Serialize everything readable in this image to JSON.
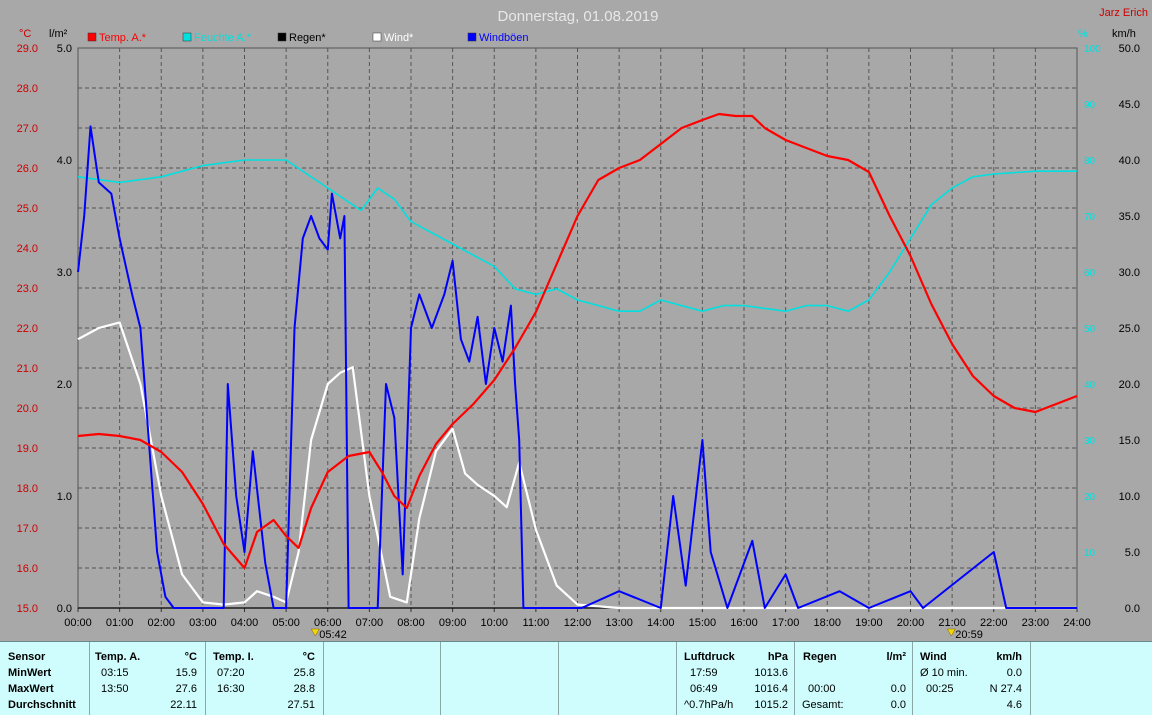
{
  "title": "Donnerstag, 01.08.2019",
  "author": "Jarz Erich",
  "units": {
    "temp": "°C",
    "rain": "l/m²",
    "hum": "%",
    "wind": "km/h"
  },
  "colors": {
    "temp": "#ff0000",
    "hum": "#00e0e0",
    "rain": "#000000",
    "wind": "#ffffff",
    "gust": "#0000ff",
    "author": "#cc0000"
  },
  "chart_data": {
    "type": "line",
    "title": "Donnerstag, 01.08.2019",
    "x_ticks": [
      "00:00",
      "01:00",
      "02:00",
      "03:00",
      "04:00",
      "05:00",
      "06:00",
      "07:00",
      "08:00",
      "09:00",
      "10:00",
      "11:00",
      "12:00",
      "13:00",
      "14:00",
      "15:00",
      "16:00",
      "17:00",
      "18:00",
      "19:00",
      "20:00",
      "21:00",
      "22:00",
      "23:00",
      "24:00"
    ],
    "temp_ticks": [
      "15.0",
      "16.0",
      "17.0",
      "18.0",
      "19.0",
      "20.0",
      "21.0",
      "22.0",
      "23.0",
      "24.0",
      "25.0",
      "26.0",
      "27.0",
      "28.0",
      "29.0"
    ],
    "rain_ticks": [
      "0.0",
      "1.0",
      "2.0",
      "3.0",
      "4.0",
      "5.0"
    ],
    "wind_ticks": [
      "0.0",
      "5.0",
      "10.0",
      "15.0",
      "20.0",
      "25.0",
      "30.0",
      "35.0",
      "40.0",
      "45.0",
      "50.0"
    ],
    "hum_ticks": [
      "10",
      "20",
      "30",
      "40",
      "50",
      "60",
      "70",
      "80",
      "90",
      "100"
    ],
    "ylim_temp": [
      15,
      29
    ],
    "ylim_rain": [
      0,
      5
    ],
    "ylim_wind": [
      0,
      50
    ],
    "ylim_hum": [
      0,
      100
    ],
    "xlim_hours": [
      0,
      24
    ],
    "sunrise": {
      "label": "05:42",
      "hour": 5.7
    },
    "sunset": {
      "label": "20:59",
      "hour": 20.98
    },
    "series": [
      {
        "name": "Temp. A.*",
        "axis": "temp",
        "points": [
          [
            0,
            19.3
          ],
          [
            0.5,
            19.35
          ],
          [
            1,
            19.3
          ],
          [
            1.5,
            19.2
          ],
          [
            2,
            18.9
          ],
          [
            2.5,
            18.4
          ],
          [
            3,
            17.6
          ],
          [
            3.5,
            16.6
          ],
          [
            4,
            16.0
          ],
          [
            4.3,
            16.9
          ],
          [
            4.7,
            17.2
          ],
          [
            5,
            16.8
          ],
          [
            5.3,
            16.5
          ],
          [
            5.6,
            17.5
          ],
          [
            6,
            18.4
          ],
          [
            6.5,
            18.8
          ],
          [
            7,
            18.9
          ],
          [
            7.3,
            18.4
          ],
          [
            7.6,
            17.8
          ],
          [
            7.9,
            17.5
          ],
          [
            8.2,
            18.3
          ],
          [
            8.6,
            19.1
          ],
          [
            9,
            19.6
          ],
          [
            9.5,
            20.1
          ],
          [
            10,
            20.7
          ],
          [
            10.5,
            21.5
          ],
          [
            11,
            22.4
          ],
          [
            11.5,
            23.6
          ],
          [
            12,
            24.8
          ],
          [
            12.5,
            25.7
          ],
          [
            13,
            26.0
          ],
          [
            13.5,
            26.2
          ],
          [
            14,
            26.6
          ],
          [
            14.5,
            27.0
          ],
          [
            15,
            27.2
          ],
          [
            15.4,
            27.35
          ],
          [
            15.8,
            27.3
          ],
          [
            16.2,
            27.3
          ],
          [
            16.5,
            27.0
          ],
          [
            17,
            26.7
          ],
          [
            17.5,
            26.5
          ],
          [
            18,
            26.3
          ],
          [
            18.5,
            26.2
          ],
          [
            19,
            25.9
          ],
          [
            19.5,
            24.8
          ],
          [
            20,
            23.8
          ],
          [
            20.5,
            22.6
          ],
          [
            21,
            21.6
          ],
          [
            21.5,
            20.8
          ],
          [
            22,
            20.3
          ],
          [
            22.5,
            20.0
          ],
          [
            23,
            19.9
          ],
          [
            23.5,
            20.1
          ],
          [
            24,
            20.3
          ]
        ]
      },
      {
        "name": "Feuchte A.*",
        "axis": "hum",
        "points": [
          [
            0,
            77
          ],
          [
            1,
            76
          ],
          [
            2,
            77
          ],
          [
            3,
            79
          ],
          [
            4,
            80
          ],
          [
            5,
            80
          ],
          [
            6,
            75
          ],
          [
            6.8,
            71
          ],
          [
            7.2,
            75
          ],
          [
            7.6,
            73
          ],
          [
            8,
            69
          ],
          [
            9,
            65
          ],
          [
            10,
            61
          ],
          [
            10.5,
            57
          ],
          [
            11,
            56
          ],
          [
            11.5,
            57
          ],
          [
            12,
            55
          ],
          [
            13,
            53
          ],
          [
            13.5,
            53
          ],
          [
            14,
            55
          ],
          [
            15,
            53
          ],
          [
            15.5,
            54
          ],
          [
            16,
            54
          ],
          [
            17,
            53
          ],
          [
            17.5,
            54
          ],
          [
            18,
            54
          ],
          [
            18.5,
            53
          ],
          [
            19,
            55
          ],
          [
            19.5,
            60
          ],
          [
            20,
            66
          ],
          [
            20.5,
            72
          ],
          [
            21,
            75
          ],
          [
            21.5,
            77
          ],
          [
            22,
            77.5
          ],
          [
            23,
            78
          ],
          [
            24,
            78
          ]
        ]
      },
      {
        "name": "Regen*",
        "axis": "rain",
        "points": [
          [
            0,
            0
          ],
          [
            24,
            0
          ]
        ]
      },
      {
        "name": "Wind*",
        "axis": "wind",
        "points": [
          [
            0,
            24
          ],
          [
            0.5,
            25
          ],
          [
            1,
            25.5
          ],
          [
            1.5,
            20
          ],
          [
            2,
            10
          ],
          [
            2.5,
            3
          ],
          [
            3,
            0.5
          ],
          [
            3.5,
            0.3
          ],
          [
            4,
            0.5
          ],
          [
            4.3,
            1.5
          ],
          [
            4.7,
            1
          ],
          [
            5,
            0.5
          ],
          [
            5.3,
            5
          ],
          [
            5.6,
            15
          ],
          [
            6,
            20
          ],
          [
            6.3,
            21
          ],
          [
            6.6,
            21.5
          ],
          [
            7,
            10
          ],
          [
            7.5,
            1
          ],
          [
            7.9,
            0.5
          ],
          [
            8.2,
            8
          ],
          [
            8.6,
            14
          ],
          [
            9,
            16
          ],
          [
            9.3,
            12
          ],
          [
            9.6,
            11
          ],
          [
            10,
            10
          ],
          [
            10.3,
            9
          ],
          [
            10.6,
            13
          ],
          [
            11,
            7
          ],
          [
            11.5,
            2
          ],
          [
            12,
            0.3
          ],
          [
            13,
            0
          ],
          [
            14,
            0
          ],
          [
            15,
            0
          ],
          [
            16,
            0
          ],
          [
            24,
            0
          ]
        ]
      },
      {
        "name": "Windböen",
        "axis": "wind",
        "points": [
          [
            0,
            30
          ],
          [
            0.15,
            35
          ],
          [
            0.3,
            43
          ],
          [
            0.5,
            38
          ],
          [
            0.8,
            37
          ],
          [
            1,
            33
          ],
          [
            1.3,
            28
          ],
          [
            1.5,
            25
          ],
          [
            1.7,
            15
          ],
          [
            1.9,
            5
          ],
          [
            2.1,
            1
          ],
          [
            2.3,
            0
          ],
          [
            3.5,
            0
          ],
          [
            3.6,
            20
          ],
          [
            3.8,
            10
          ],
          [
            4,
            5
          ],
          [
            4.2,
            14
          ],
          [
            4.5,
            4
          ],
          [
            4.7,
            0
          ],
          [
            5,
            0
          ],
          [
            5.2,
            25
          ],
          [
            5.4,
            33
          ],
          [
            5.6,
            35
          ],
          [
            5.8,
            33
          ],
          [
            6,
            32
          ],
          [
            6.1,
            37
          ],
          [
            6.3,
            33
          ],
          [
            6.4,
            35
          ],
          [
            6.5,
            0
          ],
          [
            7.2,
            0
          ],
          [
            7.4,
            20
          ],
          [
            7.6,
            17
          ],
          [
            7.8,
            3
          ],
          [
            8,
            25
          ],
          [
            8.2,
            28
          ],
          [
            8.5,
            25
          ],
          [
            8.8,
            28
          ],
          [
            9,
            31
          ],
          [
            9.2,
            24
          ],
          [
            9.4,
            22
          ],
          [
            9.6,
            26
          ],
          [
            9.8,
            20
          ],
          [
            10,
            25
          ],
          [
            10.2,
            22
          ],
          [
            10.4,
            27
          ],
          [
            10.5,
            20
          ],
          [
            10.6,
            15
          ],
          [
            10.7,
            0
          ],
          [
            11.8,
            0
          ],
          [
            12.1,
            0
          ],
          [
            13,
            1.5
          ],
          [
            14,
            0
          ],
          [
            14.3,
            10
          ],
          [
            14.6,
            2
          ],
          [
            15,
            15
          ],
          [
            15.2,
            5
          ],
          [
            15.6,
            0
          ],
          [
            16.2,
            6
          ],
          [
            16.5,
            0
          ],
          [
            17,
            3
          ],
          [
            17.3,
            0
          ],
          [
            18.3,
            1.5
          ],
          [
            19,
            0
          ],
          [
            20,
            1.5
          ],
          [
            20.3,
            0
          ],
          [
            22,
            5
          ],
          [
            22.3,
            0
          ],
          [
            24,
            0
          ]
        ]
      }
    ]
  },
  "legend": [
    {
      "label": "Temp. A.*",
      "color": "#ff0000"
    },
    {
      "label": "Feuchte A.*",
      "color": "#00e0e0"
    },
    {
      "label": "Regen*",
      "color": "#000000"
    },
    {
      "label": "Wind*",
      "color": "#ffffff"
    },
    {
      "label": "Windböen",
      "color": "#0000ff"
    }
  ],
  "stats": {
    "sensor": {
      "head": "Sensor",
      "min": "MinWert",
      "max": "MaxWert",
      "avg": "Durchschnitt"
    },
    "temp_a": {
      "head": "Temp. A.",
      "unit": "°C",
      "min_time": "03:15",
      "min_val": "15.9",
      "max_time": "13:50",
      "max_val": "27.6",
      "avg": "22.11"
    },
    "temp_i": {
      "head": "Temp. I.",
      "unit": "°C",
      "min_time": "07:20",
      "min_val": "25.8",
      "max_time": "16:30",
      "max_val": "28.8",
      "avg": "27.51"
    },
    "pressure": {
      "head": "Luftdruck",
      "unit": "hPa",
      "min_time": "17:59",
      "min_val": "1013.6",
      "max_time": "06:49",
      "max_val": "1016.4",
      "trend_label": "^0.7hPa/h",
      "trend_val": "1015.2"
    },
    "rain": {
      "head": "Regen",
      "unit": "l/m²",
      "r1_label": "00:00",
      "r1_val": "0.0",
      "r2_label": "Gesamt:",
      "r2_val": "0.0"
    },
    "wind": {
      "head": "Wind",
      "unit": "km/h",
      "r1_label": "Ø 10 min.",
      "r1_val": "0.0",
      "r2_label": "00:25",
      "r2_val": "N 27.4",
      "r3_val": "4.6"
    }
  }
}
